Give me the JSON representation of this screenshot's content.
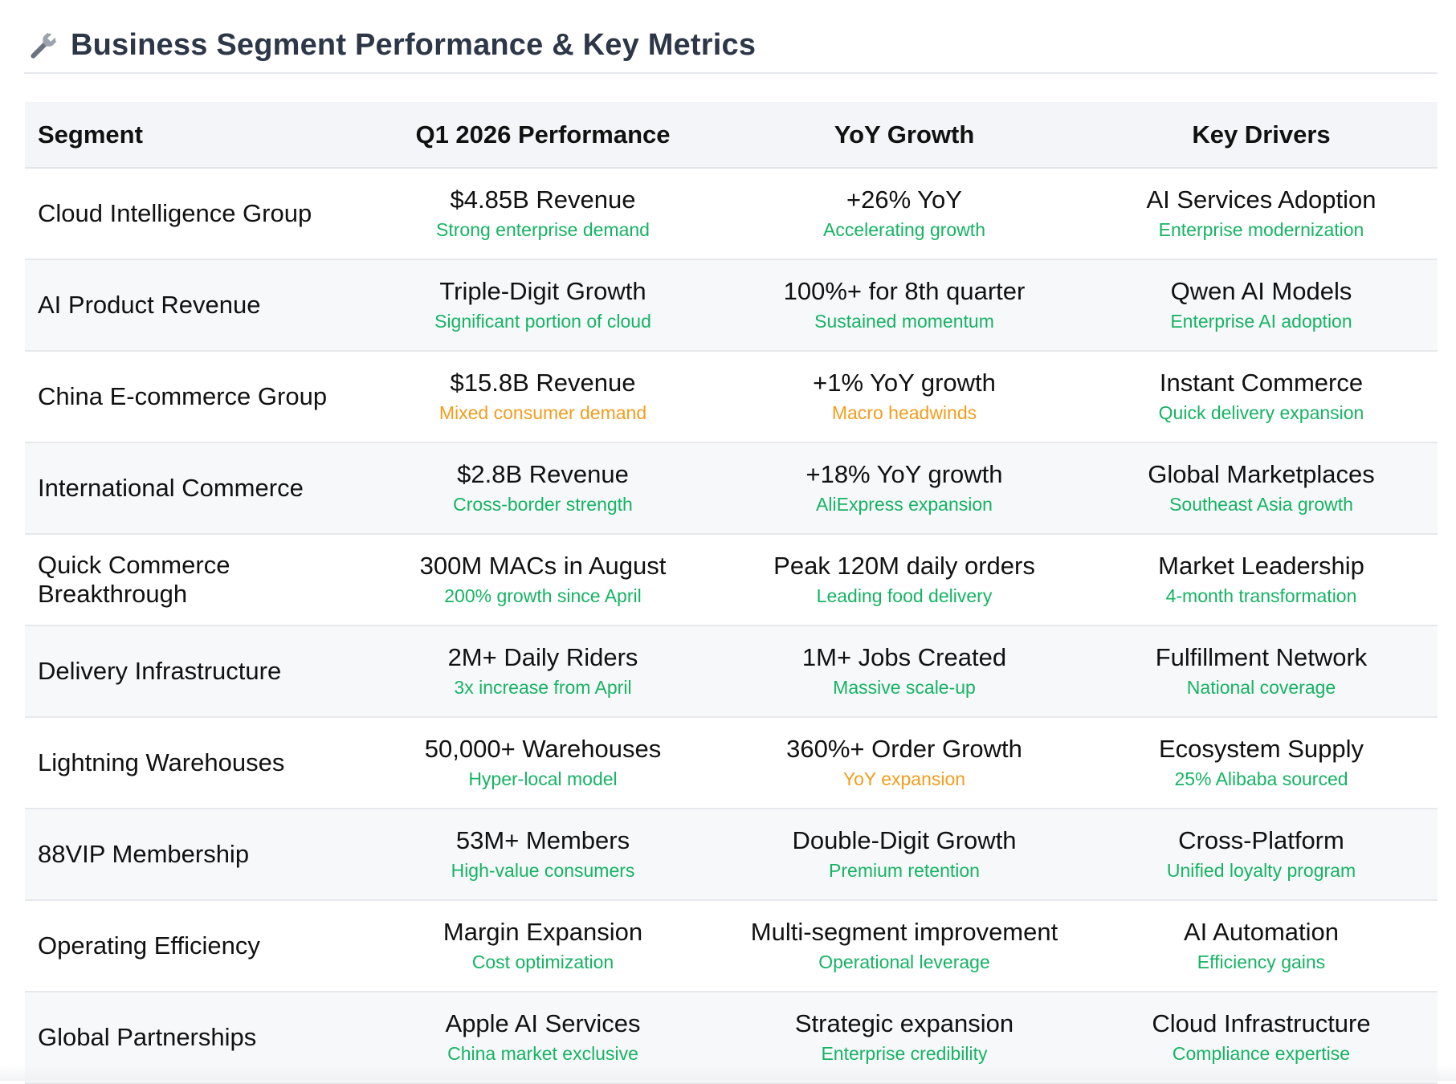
{
  "title": "Business Segment Performance & Key Metrics",
  "title_icon": "wrench-icon",
  "colors": {
    "green": "#16b364",
    "orange": "#f29d1e"
  },
  "columns": [
    "Segment",
    "Q1 2026 Performance",
    "YoY Growth",
    "Key Drivers"
  ],
  "rows": [
    {
      "segment": "Cloud Intelligence Group",
      "performance": {
        "main": "$4.85B Revenue",
        "sub": "Strong enterprise demand",
        "tone": "green"
      },
      "growth": {
        "main": "+26% YoY",
        "sub": "Accelerating growth",
        "tone": "green"
      },
      "drivers": {
        "main": "AI Services Adoption",
        "sub": "Enterprise modernization",
        "tone": "green"
      }
    },
    {
      "segment": "AI Product Revenue",
      "performance": {
        "main": "Triple-Digit Growth",
        "sub": "Significant portion of cloud",
        "tone": "green"
      },
      "growth": {
        "main": "100%+ for 8th quarter",
        "sub": "Sustained momentum",
        "tone": "green"
      },
      "drivers": {
        "main": "Qwen AI Models",
        "sub": "Enterprise AI adoption",
        "tone": "green"
      }
    },
    {
      "segment": "China E-commerce Group",
      "performance": {
        "main": "$15.8B Revenue",
        "sub": "Mixed consumer demand",
        "tone": "orange"
      },
      "growth": {
        "main": "+1% YoY growth",
        "sub": "Macro headwinds",
        "tone": "orange"
      },
      "drivers": {
        "main": "Instant Commerce",
        "sub": "Quick delivery expansion",
        "tone": "green"
      }
    },
    {
      "segment": "International Commerce",
      "performance": {
        "main": "$2.8B Revenue",
        "sub": "Cross-border strength",
        "tone": "green"
      },
      "growth": {
        "main": "+18% YoY growth",
        "sub": "AliExpress expansion",
        "tone": "green"
      },
      "drivers": {
        "main": "Global Marketplaces",
        "sub": "Southeast Asia growth",
        "tone": "green"
      }
    },
    {
      "segment": "Quick Commerce Breakthrough",
      "performance": {
        "main": "300M MACs in August",
        "sub": "200% growth since April",
        "tone": "green"
      },
      "growth": {
        "main": "Peak 120M daily orders",
        "sub": "Leading food delivery",
        "tone": "green"
      },
      "drivers": {
        "main": "Market Leadership",
        "sub": "4-month transformation",
        "tone": "green"
      }
    },
    {
      "segment": "Delivery Infrastructure",
      "performance": {
        "main": "2M+ Daily Riders",
        "sub": "3x increase from April",
        "tone": "green"
      },
      "growth": {
        "main": "1M+ Jobs Created",
        "sub": "Massive scale-up",
        "tone": "green"
      },
      "drivers": {
        "main": "Fulfillment Network",
        "sub": "National coverage",
        "tone": "green"
      }
    },
    {
      "segment": "Lightning Warehouses",
      "performance": {
        "main": "50,000+ Warehouses",
        "sub": "Hyper-local model",
        "tone": "green"
      },
      "growth": {
        "main": "360%+ Order Growth",
        "sub": "YoY expansion",
        "tone": "orange"
      },
      "drivers": {
        "main": "Ecosystem Supply",
        "sub": "25% Alibaba sourced",
        "tone": "green"
      }
    },
    {
      "segment": "88VIP Membership",
      "performance": {
        "main": "53M+ Members",
        "sub": "High-value consumers",
        "tone": "green"
      },
      "growth": {
        "main": "Double-Digit Growth",
        "sub": "Premium retention",
        "tone": "green"
      },
      "drivers": {
        "main": "Cross-Platform",
        "sub": "Unified loyalty program",
        "tone": "green"
      }
    },
    {
      "segment": "Operating Efficiency",
      "performance": {
        "main": "Margin Expansion",
        "sub": "Cost optimization",
        "tone": "green"
      },
      "growth": {
        "main": "Multi-segment improvement",
        "sub": "Operational leverage",
        "tone": "green"
      },
      "drivers": {
        "main": "AI Automation",
        "sub": "Efficiency gains",
        "tone": "green"
      }
    },
    {
      "segment": "Global Partnerships",
      "performance": {
        "main": "Apple AI Services",
        "sub": "China market exclusive",
        "tone": "green"
      },
      "growth": {
        "main": "Strategic expansion",
        "sub": "Enterprise credibility",
        "tone": "green"
      },
      "drivers": {
        "main": "Cloud Infrastructure",
        "sub": "Compliance expertise",
        "tone": "green"
      }
    }
  ]
}
